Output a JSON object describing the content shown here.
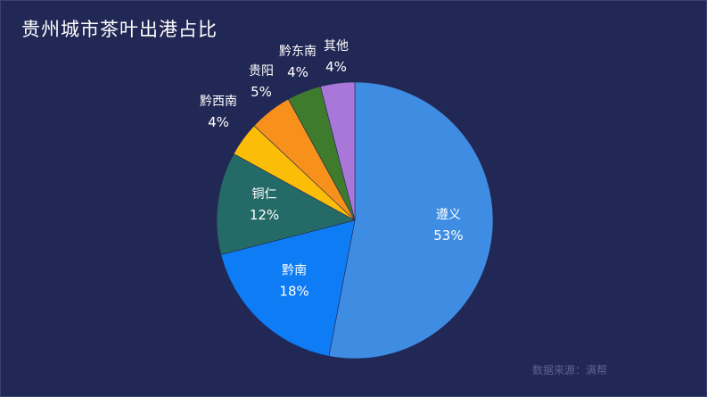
{
  "header": {
    "title": "贵州城市茶叶出港占比"
  },
  "footer": {
    "source": "数据来源：满帮"
  },
  "chart_data": {
    "type": "pie",
    "title": "贵州城市茶叶出港占比",
    "slices": [
      {
        "label": "遵义",
        "value": 53,
        "percent_label": "53%",
        "color": "#3f8de3"
      },
      {
        "label": "黔南",
        "value": 18,
        "percent_label": "18%",
        "color": "#0d7cf5"
      },
      {
        "label": "铜仁",
        "value": 12,
        "percent_label": "12%",
        "color": "#246a66"
      },
      {
        "label": "黔西南",
        "value": 4,
        "percent_label": "4%",
        "color": "#fbbd08"
      },
      {
        "label": "贵阳",
        "value": 5,
        "percent_label": "5%",
        "color": "#f8911c"
      },
      {
        "label": "黔东南",
        "value": 4,
        "percent_label": "4%",
        "color": "#3e7b2d"
      },
      {
        "label": "其他",
        "value": 4,
        "percent_label": "4%",
        "color": "#a877d8"
      }
    ]
  }
}
